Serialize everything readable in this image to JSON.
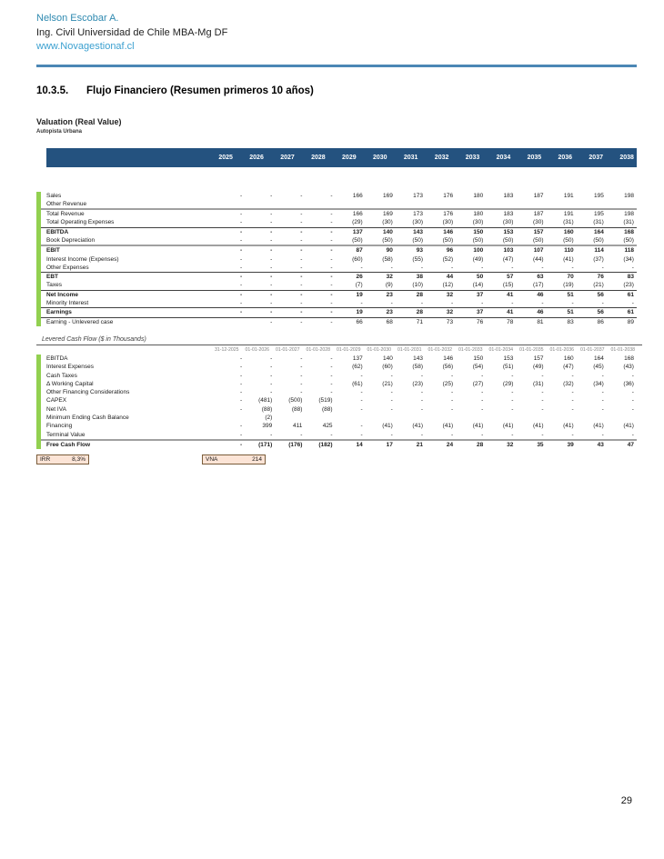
{
  "header": {
    "name": "Nelson Escobar A.",
    "subtitle": "Ing. Civil Universidad de Chile MBA-Mg DF",
    "website": "www.Novagestionaf.cl"
  },
  "section": {
    "number": "10.3.5.",
    "title": "Flujo Financiero (Resumen primeros 10 años)"
  },
  "valuation": {
    "title": "Valuation (Real Value)",
    "subtitle": "Autopista Urbana"
  },
  "income_table": {
    "years": [
      "2025",
      "2026",
      "2027",
      "2028",
      "2029",
      "2030",
      "2031",
      "2032",
      "2033",
      "2034",
      "2035",
      "2036",
      "2037",
      "2038"
    ],
    "rows": [
      {
        "label": "Sales",
        "bold": false,
        "border": "none",
        "values": [
          "-",
          "-",
          "-",
          "-",
          "166",
          "169",
          "173",
          "176",
          "180",
          "183",
          "187",
          "191",
          "195",
          "198"
        ]
      },
      {
        "label": "Other Revenue",
        "bold": false,
        "border": "thick",
        "values": [
          "",
          "",
          "",
          "",
          "",
          "",
          "",
          "",
          "",
          "",
          "",
          "",
          "",
          ""
        ]
      },
      {
        "label": "Total Revenue",
        "bold": false,
        "border": "none",
        "values": [
          "-",
          "-",
          "-",
          "-",
          "166",
          "169",
          "173",
          "176",
          "180",
          "183",
          "187",
          "191",
          "195",
          "198"
        ]
      },
      {
        "label": "Total Operating Expenses",
        "bold": false,
        "border": "thin",
        "values": [
          "-",
          "-",
          "-",
          "-",
          "(29)",
          "(30)",
          "(30)",
          "(30)",
          "(30)",
          "(30)",
          "(30)",
          "(31)",
          "(31)",
          "(31)"
        ]
      },
      {
        "label": "EBITDA",
        "bold": true,
        "border": "none",
        "values": [
          "-",
          "-",
          "-",
          "-",
          "137",
          "140",
          "143",
          "146",
          "150",
          "153",
          "157",
          "160",
          "164",
          "168"
        ]
      },
      {
        "label": "Book Depreciation",
        "bold": false,
        "border": "thick",
        "values": [
          "-",
          "-",
          "-",
          "-",
          "(50)",
          "(50)",
          "(50)",
          "(50)",
          "(50)",
          "(50)",
          "(50)",
          "(50)",
          "(50)",
          "(50)"
        ]
      },
      {
        "label": "EBIT",
        "bold": true,
        "border": "none",
        "values": [
          "-",
          "-",
          "-",
          "-",
          "87",
          "90",
          "93",
          "96",
          "100",
          "103",
          "107",
          "110",
          "114",
          "118"
        ]
      },
      {
        "label": "Interest Income (Expenses)",
        "bold": false,
        "border": "none",
        "values": [
          "-",
          "-",
          "-",
          "-",
          "(60)",
          "(58)",
          "(55)",
          "(52)",
          "(49)",
          "(47)",
          "(44)",
          "(41)",
          "(37)",
          "(34)"
        ]
      },
      {
        "label": "Other Expenses",
        "bold": false,
        "border": "thin",
        "values": [
          "-",
          "-",
          "-",
          "-",
          "-",
          "-",
          "-",
          "-",
          "-",
          "-",
          "-",
          "-",
          "-",
          "-"
        ]
      },
      {
        "label": "EBT",
        "bold": true,
        "border": "none",
        "values": [
          "-",
          "-",
          "-",
          "-",
          "26",
          "32",
          "38",
          "44",
          "50",
          "57",
          "63",
          "70",
          "76",
          "83"
        ]
      },
      {
        "label": "Taxes",
        "bold": false,
        "border": "thin",
        "values": [
          "-",
          "-",
          "-",
          "-",
          "(7)",
          "(9)",
          "(10)",
          "(12)",
          "(14)",
          "(15)",
          "(17)",
          "(19)",
          "(21)",
          "(23)"
        ]
      },
      {
        "label": "Net Income",
        "bold": true,
        "border": "none",
        "values": [
          "-",
          "-",
          "-",
          "-",
          "19",
          "23",
          "28",
          "32",
          "37",
          "41",
          "46",
          "51",
          "56",
          "61"
        ]
      },
      {
        "label": "Minority Interest",
        "bold": false,
        "border": "thin",
        "values": [
          "-",
          "-",
          "-",
          "-",
          "-",
          "-",
          "-",
          "-",
          "-",
          "-",
          "-",
          "-",
          "-",
          "-"
        ]
      },
      {
        "label": "Earnings",
        "bold": true,
        "border": "thin",
        "values": [
          "-",
          "-",
          "-",
          "-",
          "19",
          "23",
          "28",
          "32",
          "37",
          "41",
          "46",
          "51",
          "56",
          "61"
        ]
      },
      {
        "label": "Earning - Unlevered case",
        "bold": false,
        "border": "none",
        "values": [
          "",
          "-",
          "-",
          "-",
          "66",
          "68",
          "71",
          "73",
          "76",
          "78",
          "81",
          "83",
          "86",
          "89"
        ]
      }
    ]
  },
  "cashflow_table": {
    "title": "Levered Cash Flow ($ in Thousands)",
    "dates": [
      "31-12-2025",
      "01-01-2026",
      "01-01-2027",
      "01-01-2028",
      "01-01-2029",
      "01-01-2030",
      "01-01-2031",
      "01-01-2032",
      "01-01-2033",
      "01-01-2034",
      "01-01-2035",
      "01-01-2036",
      "01-01-2037",
      "01-01-2038"
    ],
    "rows": [
      {
        "label": "EBITDA",
        "bold": false,
        "border": "none",
        "values": [
          "-",
          "-",
          "-",
          "-",
          "137",
          "140",
          "143",
          "146",
          "150",
          "153",
          "157",
          "160",
          "164",
          "168"
        ]
      },
      {
        "label": "Interest Expenses",
        "bold": false,
        "border": "none",
        "values": [
          "-",
          "-",
          "-",
          "-",
          "(62)",
          "(60)",
          "(58)",
          "(56)",
          "(54)",
          "(51)",
          "(49)",
          "(47)",
          "(45)",
          "(43)"
        ]
      },
      {
        "label": "Cash Taxes",
        "bold": false,
        "border": "none",
        "values": [
          "-",
          "-",
          "-",
          "-",
          "-",
          "-",
          "-",
          "-",
          "-",
          "-",
          "-",
          "-",
          "-",
          "-"
        ]
      },
      {
        "label": "Δ Working Capital",
        "bold": false,
        "border": "none",
        "values": [
          "-",
          "-",
          "-",
          "-",
          "(61)",
          "(21)",
          "(23)",
          "(25)",
          "(27)",
          "(29)",
          "(31)",
          "(32)",
          "(34)",
          "(36)"
        ]
      },
      {
        "label": "Other Financing Considerations",
        "bold": false,
        "border": "none",
        "values": [
          "-",
          "-",
          "-",
          "-",
          "-",
          "-",
          "-",
          "-",
          "-",
          "-",
          "-",
          "-",
          "-",
          "-"
        ]
      },
      {
        "label": "CAPEX",
        "bold": false,
        "border": "none",
        "values": [
          "-",
          "(481)",
          "(500)",
          "(519)",
          "-",
          "-",
          "-",
          "-",
          "-",
          "-",
          "-",
          "-",
          "-",
          "-"
        ]
      },
      {
        "label": "Net IVA",
        "bold": false,
        "border": "none",
        "values": [
          "-",
          "(88)",
          "(88)",
          "(88)",
          "-",
          "-",
          "-",
          "-",
          "-",
          "-",
          "-",
          "-",
          "-",
          "-"
        ]
      },
      {
        "label": "Minimum Ending Cash Balance",
        "bold": false,
        "border": "none",
        "values": [
          "",
          "(2)",
          "",
          "",
          "",
          "",
          "",
          "",
          "",
          "",
          "",
          "",
          "",
          ""
        ]
      },
      {
        "label": "Financing",
        "bold": false,
        "border": "none",
        "values": [
          "-",
          "399",
          "411",
          "425",
          "-",
          "(41)",
          "(41)",
          "(41)",
          "(41)",
          "(41)",
          "(41)",
          "(41)",
          "(41)",
          "(41)"
        ]
      },
      {
        "label": "Terminal Value",
        "bold": false,
        "border": "thick",
        "values": [
          "-",
          "-",
          "-",
          "-",
          "-",
          "-",
          "-",
          "-",
          "-",
          "-",
          "-",
          "-",
          "-",
          "-"
        ]
      },
      {
        "label": "Free Cash Flow",
        "bold": true,
        "border": "none",
        "values": [
          "-",
          "(171)",
          "(176)",
          "(182)",
          "14",
          "17",
          "21",
          "24",
          "28",
          "32",
          "35",
          "39",
          "43",
          "47"
        ]
      }
    ]
  },
  "summary": {
    "irr_label": "IRR",
    "irr_value": "8,3%",
    "vna_label": "VNA",
    "vna_value": "214"
  },
  "page_number": "29",
  "colors": {
    "accent_teal": "#2e89b0",
    "link_blue": "#3ba0d0",
    "rule_blue": "#4c87b5",
    "table_header_navy": "#24527f",
    "left_bar_green": "#92d050",
    "summary_box_fill": "#fce4d6"
  }
}
